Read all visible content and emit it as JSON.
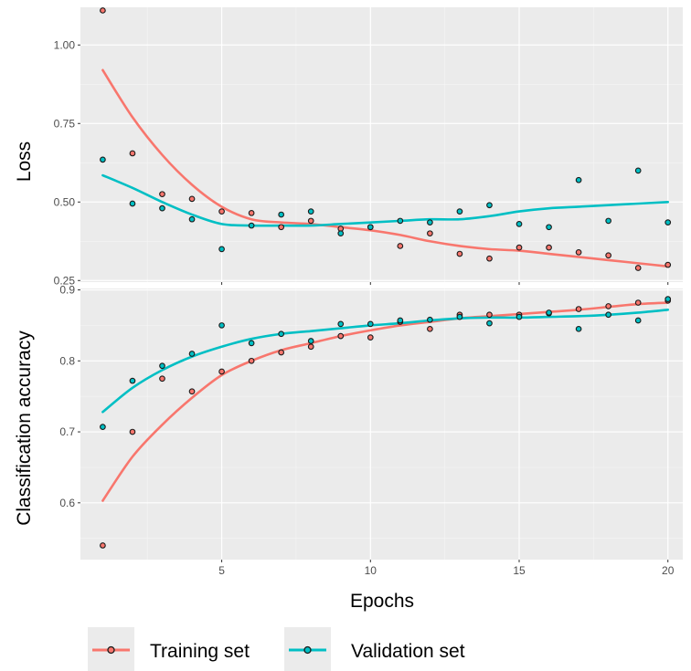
{
  "chart_data": [
    {
      "type": "scatter",
      "panel": "top",
      "title": "",
      "xlabel": "",
      "ylabel": "Loss",
      "xlim": [
        0.25,
        20.5
      ],
      "ylim": [
        0.245,
        1.12
      ],
      "xticks": [
        5,
        10,
        15,
        20
      ],
      "yticks": [
        0.25,
        0.5,
        0.75,
        1.0
      ],
      "ytick_labels": [
        "0.25",
        "0.50",
        "0.75",
        "1.00"
      ],
      "grid": true,
      "x": [
        1,
        2,
        3,
        4,
        5,
        6,
        7,
        8,
        9,
        10,
        11,
        12,
        13,
        14,
        15,
        16,
        17,
        18,
        19,
        20
      ],
      "series": [
        {
          "name": "Training set",
          "color": "#F8766D",
          "values": [
            1.11,
            0.655,
            0.525,
            0.51,
            0.47,
            0.465,
            0.42,
            0.44,
            0.415,
            0.42,
            0.36,
            0.4,
            0.335,
            0.32,
            0.355,
            0.355,
            0.34,
            0.33,
            0.29,
            0.3
          ],
          "trend": [
            0.92,
            0.77,
            0.65,
            0.555,
            0.485,
            0.445,
            0.435,
            0.43,
            0.42,
            0.41,
            0.395,
            0.375,
            0.36,
            0.35,
            0.345,
            0.335,
            0.325,
            0.315,
            0.305,
            0.295
          ]
        },
        {
          "name": "Validation set",
          "color": "#00BFC4",
          "values": [
            0.635,
            0.495,
            0.48,
            0.445,
            0.35,
            0.425,
            0.46,
            0.47,
            0.4,
            0.42,
            0.44,
            0.435,
            0.47,
            0.49,
            0.43,
            0.42,
            0.57,
            0.44,
            0.6,
            0.435
          ],
          "trend": [
            0.585,
            0.545,
            0.5,
            0.46,
            0.43,
            0.425,
            0.425,
            0.425,
            0.43,
            0.435,
            0.44,
            0.445,
            0.445,
            0.455,
            0.47,
            0.48,
            0.485,
            0.49,
            0.495,
            0.5
          ]
        }
      ]
    },
    {
      "type": "scatter",
      "panel": "bottom",
      "title": "",
      "xlabel": "Epochs",
      "ylabel": "Classification accuracy",
      "xlim": [
        0.25,
        20.5
      ],
      "ylim": [
        0.52,
        0.902
      ],
      "xticks": [
        5,
        10,
        15,
        20
      ],
      "yticks": [
        0.6,
        0.7,
        0.8,
        0.9
      ],
      "ytick_labels": [
        "0.6",
        "0.7",
        "0.8",
        "0.9"
      ],
      "grid": true,
      "x": [
        1,
        2,
        3,
        4,
        5,
        6,
        7,
        8,
        9,
        10,
        11,
        12,
        13,
        14,
        15,
        16,
        17,
        18,
        19,
        20
      ],
      "series": [
        {
          "name": "Training set",
          "color": "#F8766D",
          "values": [
            0.54,
            0.7,
            0.775,
            0.757,
            0.785,
            0.8,
            0.812,
            0.82,
            0.835,
            0.833,
            0.855,
            0.845,
            0.865,
            0.865,
            0.865,
            0.867,
            0.873,
            0.877,
            0.882,
            0.885
          ],
          "trend": [
            0.603,
            0.665,
            0.71,
            0.748,
            0.78,
            0.8,
            0.815,
            0.825,
            0.835,
            0.843,
            0.85,
            0.855,
            0.86,
            0.863,
            0.866,
            0.869,
            0.872,
            0.876,
            0.88,
            0.882
          ]
        },
        {
          "name": "Validation set",
          "color": "#00BFC4",
          "values": [
            0.707,
            0.772,
            0.793,
            0.81,
            0.85,
            0.825,
            0.838,
            0.828,
            0.852,
            0.852,
            0.857,
            0.858,
            0.862,
            0.853,
            0.862,
            0.868,
            0.845,
            0.865,
            0.857,
            0.887
          ],
          "trend": [
            0.728,
            0.762,
            0.787,
            0.806,
            0.82,
            0.831,
            0.838,
            0.842,
            0.846,
            0.85,
            0.853,
            0.857,
            0.86,
            0.861,
            0.861,
            0.862,
            0.863,
            0.865,
            0.868,
            0.872
          ]
        }
      ]
    }
  ],
  "legend": {
    "position": "bottom",
    "entries": [
      "Training set",
      "Validation set"
    ]
  },
  "style": {
    "panel_background": "#EBEBEB",
    "grid_major": "#FFFFFF",
    "grid_minor": "#F5F5F5",
    "point_stroke": "#1a1a1a"
  }
}
